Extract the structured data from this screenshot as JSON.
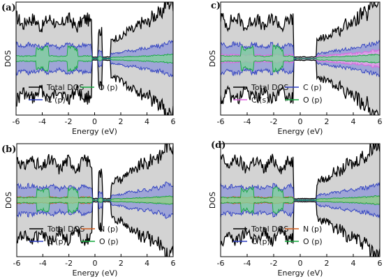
{
  "chart_data": [
    {
      "type": "area",
      "panel": "(a)",
      "xlabel": "Energy (eV)",
      "ylabel": "DOS",
      "xlim": [
        -6,
        6
      ],
      "xticks": [
        -6,
        -4,
        -2,
        0,
        2,
        4,
        6
      ],
      "series": [
        {
          "name": "Total DOS",
          "color": "#000000"
        },
        {
          "name": "C (p)",
          "color": "#2d3ec0"
        },
        {
          "name": "O (p)",
          "color": "#12a83c"
        }
      ],
      "legend_layout": [
        [
          "Total DOS",
          "O (p)"
        ],
        [
          "C (p)"
        ]
      ]
    },
    {
      "type": "area",
      "panel": "c)",
      "xlabel": "Energy (eV)",
      "ylabel": "DOS",
      "xlim": [
        -6,
        6
      ],
      "xticks": [
        -6,
        -4,
        -2,
        0,
        2,
        4,
        6
      ],
      "series": [
        {
          "name": "Total DOS",
          "color": "#000000"
        },
        {
          "name": "C (p)",
          "color": "#2d3ec0"
        },
        {
          "name": "C (s)",
          "color": "#e060e0"
        },
        {
          "name": "O (p)",
          "color": "#12a83c"
        }
      ],
      "legend_layout": [
        [
          "Total DOS",
          "C (p)"
        ],
        [
          "C (s)",
          "O (p)"
        ]
      ]
    },
    {
      "type": "area",
      "panel": "(b)",
      "xlabel": "Energy (eV)",
      "ylabel": "DOS",
      "xlim": [
        -6,
        6
      ],
      "xticks": [
        -6,
        -4,
        -2,
        0,
        2,
        4,
        6
      ],
      "series": [
        {
          "name": "Total DOS",
          "color": "#000000"
        },
        {
          "name": "C (p)",
          "color": "#2d3ec0"
        },
        {
          "name": "N (p)",
          "color": "#d05a1c"
        },
        {
          "name": "O (p)",
          "color": "#12a83c"
        }
      ],
      "legend_layout": [
        [
          "Total DOS",
          "N (p)"
        ],
        [
          "C (p)",
          "O (p)"
        ]
      ]
    },
    {
      "type": "area",
      "panel": "(d)",
      "xlabel": "Energy (eV)",
      "ylabel": "DOS",
      "xlim": [
        -6,
        6
      ],
      "xticks": [
        -6,
        -4,
        -2,
        0,
        2,
        4,
        6
      ],
      "series": [
        {
          "name": "Total DOS",
          "color": "#000000"
        },
        {
          "name": "C (p)",
          "color": "#2d3ec0"
        },
        {
          "name": "N (p)",
          "color": "#d05a1c"
        },
        {
          "name": "O (p)",
          "color": "#12a83c"
        }
      ],
      "legend_layout": [
        [
          "Total DOS",
          "N (p)"
        ],
        [
          "C (p)",
          "O (p)"
        ]
      ]
    }
  ],
  "colors": {
    "total_fill": "#d3d3d3",
    "cp_fill": "#8d96d8",
    "cs_fill": "#e9a6ea",
    "np_fill": "#d9a07a",
    "op_fill": "#7fd49a"
  }
}
